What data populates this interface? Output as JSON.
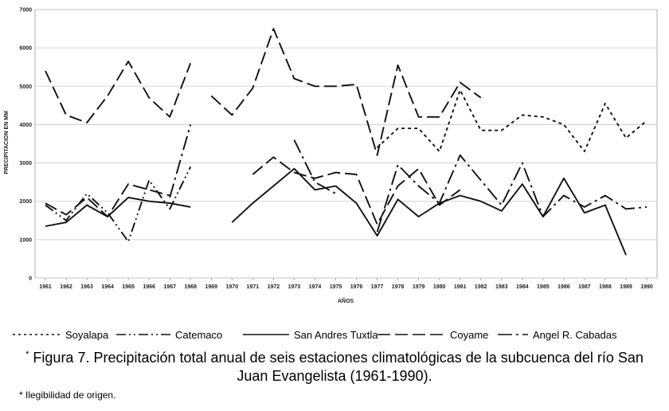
{
  "chart_data": {
    "type": "line",
    "title": "",
    "xlabel": "AÑOS",
    "ylabel": "PRECIPITACION EN MM",
    "ylim": [
      0,
      7000
    ],
    "yticks": [
      "0",
      "1000",
      "2000",
      "3000",
      "4000",
      "5000",
      "6000",
      "7000"
    ],
    "categories": [
      "1961",
      "1962",
      "1963",
      "1964",
      "1965",
      "1966",
      "1967",
      "1968",
      "1969",
      "1970",
      "1971",
      "1972",
      "1973",
      "1974",
      "1975",
      "1976",
      "1977",
      "1978",
      "1979",
      "1980",
      "1981",
      "1982",
      "1983",
      "1984",
      "1985",
      "1986",
      "1987",
      "1988",
      "1989",
      "1990"
    ],
    "grid": true,
    "legend_position": "bottom",
    "series": [
      {
        "name": "Soyalapa",
        "values": [
          null,
          null,
          null,
          null,
          null,
          null,
          null,
          null,
          null,
          null,
          null,
          null,
          null,
          null,
          null,
          null,
          3400,
          3900,
          3900,
          3300,
          4900,
          3850,
          3850,
          4250,
          4200,
          4000,
          3300,
          4550,
          3650,
          4100
        ]
      },
      {
        "name": "Catemaco",
        "values": [
          1900,
          1500,
          2200,
          1700,
          950,
          2550,
          1800,
          2900,
          null,
          null,
          null,
          null,
          null,
          null,
          null,
          null,
          null,
          null,
          null,
          null,
          null,
          null,
          null,
          null,
          null,
          null,
          null,
          null,
          null,
          null
        ]
      },
      {
        "name": "San Andres Tuxtla",
        "values": [
          1350,
          1450,
          1900,
          1600,
          2100,
          2000,
          1950,
          1850,
          null,
          1450,
          1950,
          2400,
          2850,
          2300,
          2400,
          1950,
          1100,
          2050,
          1600,
          1950,
          2150,
          2000,
          1750,
          2450,
          1600,
          2600,
          1700,
          1900,
          600,
          null
        ]
      },
      {
        "name": "Coyame",
        "values": [
          5400,
          4250,
          4050,
          4750,
          5650,
          4700,
          4200,
          5600,
          null,
          null,
          null,
          null,
          null,
          null,
          null,
          null,
          null,
          null,
          null,
          null,
          null,
          null,
          null,
          null,
          null,
          null,
          null,
          null,
          null,
          null
        ]
      },
      {
        "name": "Coyame",
        "values": [
          null,
          null,
          null,
          null,
          null,
          null,
          null,
          null,
          4750,
          4250,
          4950,
          6500,
          5200,
          5000,
          5000,
          5050,
          3200,
          5550,
          4200,
          4200,
          5100,
          4700,
          null,
          null,
          null,
          null,
          null,
          null,
          null,
          null
        ]
      },
      {
        "name": "Coyame",
        "values": [
          1950,
          1650,
          2100,
          1600,
          2450,
          2300,
          2150,
          null,
          null,
          null,
          2700,
          3150,
          2750,
          2600,
          2750,
          2700,
          1400,
          2400,
          2850,
          1900,
          2300,
          null,
          null,
          null,
          null,
          null,
          null,
          null,
          null,
          null
        ]
      },
      {
        "name": "Angel R. Cabadas",
        "values": [
          null,
          null,
          null,
          null,
          null,
          null,
          2100,
          4000,
          null,
          null,
          null,
          null,
          3600,
          2500,
          2200,
          null,
          1200,
          2950,
          2400,
          1950,
          3200,
          2550,
          1900,
          3000,
          1600,
          2150,
          1850,
          2150,
          1800,
          1850
        ]
      }
    ]
  },
  "legend": [
    {
      "label": "Soyalapa",
      "dash": "short"
    },
    {
      "label": "Catemaco",
      "dash": "dash-dot-dot"
    },
    {
      "label": "San Andres Tuxtla",
      "dash": "solid"
    },
    {
      "label": "Coyame",
      "dash": "long"
    },
    {
      "label": "Angel R. Cabadas",
      "dash": "long-dash-dot"
    }
  ],
  "caption": {
    "marker": "*",
    "text": "Figura 7. Precipitación total anual de seis estaciones climatológicas de la subcuenca del río San Juan Evangelista (1961-1990)."
  },
  "footnote": "* Ilegibilidad de origen."
}
